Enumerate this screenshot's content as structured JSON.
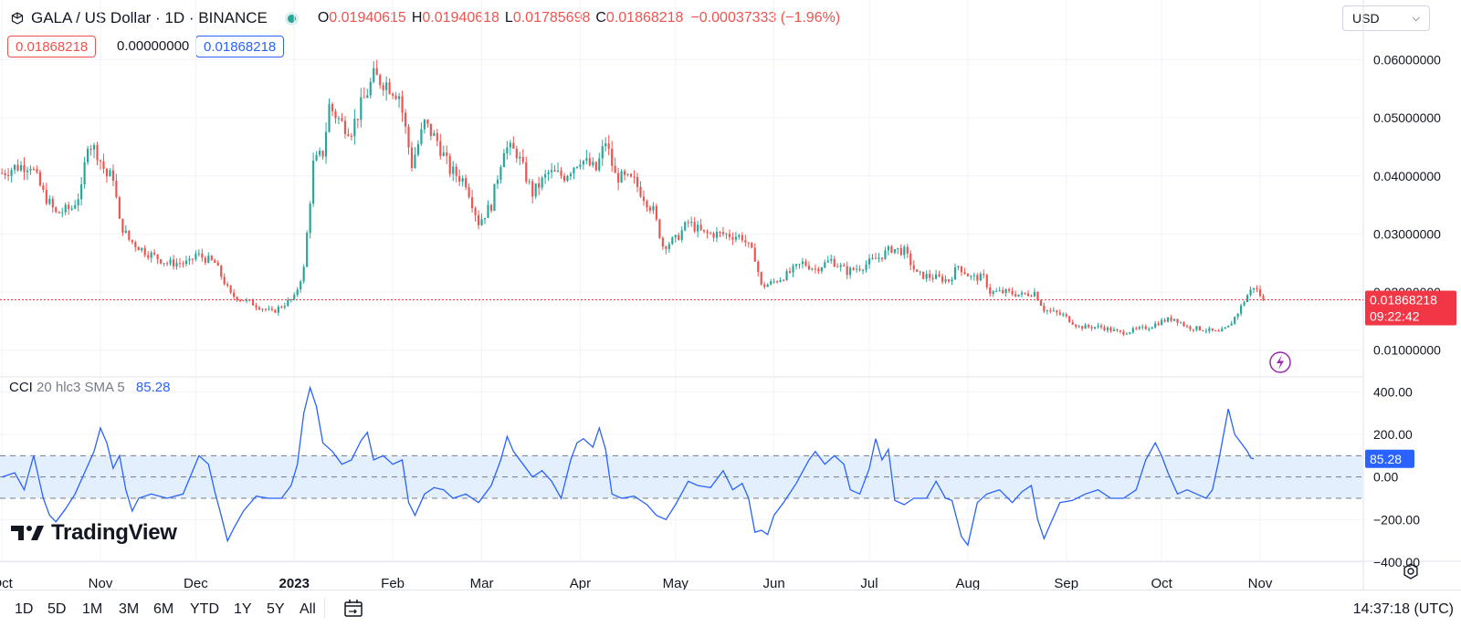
{
  "legend": {
    "symbol": "GALA / US Dollar · 1D · BINANCE",
    "o_label": "O",
    "o_value": "0.01940615",
    "h_label": "H",
    "h_value": "0.01940618",
    "l_label": "L",
    "l_value": "0.01785698",
    "c_label": "C",
    "c_value": "0.01868218",
    "change": "−0.00037333 (−1.96%)",
    "bid": "0.01868218",
    "spread": "0.00000000",
    "ask": "0.01868218"
  },
  "currency": {
    "label": "USD"
  },
  "price_scale": {
    "ticks": [
      {
        "value": 0.06,
        "label": "0.06000000"
      },
      {
        "value": 0.05,
        "label": "0.05000000"
      },
      {
        "value": 0.04,
        "label": "0.04000000"
      },
      {
        "value": 0.03,
        "label": "0.03000000"
      },
      {
        "value": 0.02,
        "label": "0.02000000"
      },
      {
        "value": 0.01,
        "label": "0.01000000"
      }
    ],
    "last_price_label": "0.01868218",
    "countdown_label": "09:22:42"
  },
  "cci_scale": {
    "ticks": [
      {
        "value": 400,
        "label": "400.00"
      },
      {
        "value": 200,
        "label": "200.00"
      },
      {
        "value": 0,
        "label": "0.00"
      },
      {
        "value": -200,
        "label": "−200.00"
      },
      {
        "value": -400,
        "label": "−400.00"
      }
    ],
    "value_label": "85.28"
  },
  "cci_legend": {
    "name": "CCI",
    "params": "20 hlc3 SMA 5",
    "value": "85.28"
  },
  "time_axis": {
    "labels": [
      {
        "t": -9,
        "label": "Oct",
        "bold": false
      },
      {
        "t": 22,
        "label": "Nov",
        "bold": false
      },
      {
        "t": 52,
        "label": "Dec",
        "bold": false
      },
      {
        "t": 83,
        "label": "2023",
        "bold": true
      },
      {
        "t": 114,
        "label": "Feb",
        "bold": false
      },
      {
        "t": 142,
        "label": "Mar",
        "bold": false
      },
      {
        "t": 173,
        "label": "Apr",
        "bold": false
      },
      {
        "t": 203,
        "label": "May",
        "bold": false
      },
      {
        "t": 234,
        "label": "Jun",
        "bold": false
      },
      {
        "t": 264,
        "label": "Jul",
        "bold": false
      },
      {
        "t": 295,
        "label": "Aug",
        "bold": false
      },
      {
        "t": 326,
        "label": "Sep",
        "bold": false
      },
      {
        "t": 356,
        "label": "Oct",
        "bold": false
      },
      {
        "t": 387,
        "label": "Nov",
        "bold": false
      }
    ]
  },
  "logo": {
    "text": "TradingView"
  },
  "bottom_bar": {
    "ranges": [
      "1D",
      "5D",
      "1M",
      "3M",
      "6M",
      "YTD",
      "1Y",
      "5Y",
      "All"
    ],
    "clock": "14:37:18 (UTC)"
  },
  "colors": {
    "up": "#26a69a",
    "down": "#ef5350",
    "cci_line": "#2962ff",
    "cci_band": "#e3effd",
    "grid": "#f0f3fa",
    "last_price": "#f23645"
  },
  "icons": [
    "symbol-icon",
    "market-open-dot",
    "chevron-down-icon",
    "lightning-icon",
    "tradingview-logo-icon",
    "compare-calendar-icon",
    "settings-icon"
  ],
  "chart_data": {
    "type": "candlestick",
    "symbol": "GALA / US Dollar",
    "interval": "1D",
    "exchange": "BINANCE",
    "x_unit": "days since 2022-10-01",
    "anchor_points": [
      {
        "t": -9,
        "price": 0.0405
      },
      {
        "t": -5,
        "price": 0.0415
      },
      {
        "t": 0,
        "price": 0.042
      },
      {
        "t": 4,
        "price": 0.037
      },
      {
        "t": 8,
        "price": 0.0335
      },
      {
        "t": 13,
        "price": 0.0345
      },
      {
        "t": 16,
        "price": 0.0375
      },
      {
        "t": 18,
        "price": 0.046
      },
      {
        "t": 21,
        "price": 0.044
      },
      {
        "t": 24,
        "price": 0.04
      },
      {
        "t": 26,
        "price": 0.04
      },
      {
        "t": 28,
        "price": 0.032
      },
      {
        "t": 31,
        "price": 0.029
      },
      {
        "t": 36,
        "price": 0.027
      },
      {
        "t": 43,
        "price": 0.025
      },
      {
        "t": 50,
        "price": 0.025
      },
      {
        "t": 52,
        "price": 0.0265
      },
      {
        "t": 58,
        "price": 0.025
      },
      {
        "t": 63,
        "price": 0.0195
      },
      {
        "t": 70,
        "price": 0.018
      },
      {
        "t": 76,
        "price": 0.0165
      },
      {
        "t": 80,
        "price": 0.018
      },
      {
        "t": 83,
        "price": 0.019
      },
      {
        "t": 86,
        "price": 0.024
      },
      {
        "t": 89,
        "price": 0.042
      },
      {
        "t": 92,
        "price": 0.044
      },
      {
        "t": 94,
        "price": 0.052
      },
      {
        "t": 98,
        "price": 0.049
      },
      {
        "t": 101,
        "price": 0.048
      },
      {
        "t": 104,
        "price": 0.052
      },
      {
        "t": 108,
        "price": 0.057
      },
      {
        "t": 112,
        "price": 0.056
      },
      {
        "t": 116,
        "price": 0.054
      },
      {
        "t": 120,
        "price": 0.042
      },
      {
        "t": 124,
        "price": 0.049
      },
      {
        "t": 128,
        "price": 0.046
      },
      {
        "t": 132,
        "price": 0.041
      },
      {
        "t": 137,
        "price": 0.039
      },
      {
        "t": 141,
        "price": 0.032
      },
      {
        "t": 145,
        "price": 0.035
      },
      {
        "t": 149,
        "price": 0.045
      },
      {
        "t": 153,
        "price": 0.044
      },
      {
        "t": 158,
        "price": 0.037
      },
      {
        "t": 163,
        "price": 0.0405
      },
      {
        "t": 168,
        "price": 0.04
      },
      {
        "t": 173,
        "price": 0.043
      },
      {
        "t": 178,
        "price": 0.041
      },
      {
        "t": 181,
        "price": 0.046
      },
      {
        "t": 184,
        "price": 0.04
      },
      {
        "t": 190,
        "price": 0.039
      },
      {
        "t": 196,
        "price": 0.034
      },
      {
        "t": 199,
        "price": 0.028
      },
      {
        "t": 203,
        "price": 0.029
      },
      {
        "t": 207,
        "price": 0.032
      },
      {
        "t": 212,
        "price": 0.03
      },
      {
        "t": 218,
        "price": 0.03
      },
      {
        "t": 224,
        "price": 0.0295
      },
      {
        "t": 228,
        "price": 0.026
      },
      {
        "t": 230,
        "price": 0.021
      },
      {
        "t": 233,
        "price": 0.0215
      },
      {
        "t": 238,
        "price": 0.023
      },
      {
        "t": 243,
        "price": 0.025
      },
      {
        "t": 247,
        "price": 0.024
      },
      {
        "t": 252,
        "price": 0.0255
      },
      {
        "t": 257,
        "price": 0.0235
      },
      {
        "t": 262,
        "price": 0.0245
      },
      {
        "t": 267,
        "price": 0.026
      },
      {
        "t": 271,
        "price": 0.0275
      },
      {
        "t": 275,
        "price": 0.027
      },
      {
        "t": 279,
        "price": 0.023
      },
      {
        "t": 285,
        "price": 0.0225
      },
      {
        "t": 289,
        "price": 0.022
      },
      {
        "t": 292,
        "price": 0.0245
      },
      {
        "t": 296,
        "price": 0.0225
      },
      {
        "t": 300,
        "price": 0.0225
      },
      {
        "t": 302,
        "price": 0.02
      },
      {
        "t": 307,
        "price": 0.02
      },
      {
        "t": 312,
        "price": 0.0195
      },
      {
        "t": 316,
        "price": 0.02
      },
      {
        "t": 319,
        "price": 0.017
      },
      {
        "t": 325,
        "price": 0.016
      },
      {
        "t": 330,
        "price": 0.014
      },
      {
        "t": 337,
        "price": 0.014
      },
      {
        "t": 343,
        "price": 0.013
      },
      {
        "t": 348,
        "price": 0.0135
      },
      {
        "t": 352,
        "price": 0.014
      },
      {
        "t": 356,
        "price": 0.015
      },
      {
        "t": 360,
        "price": 0.0155
      },
      {
        "t": 364,
        "price": 0.014
      },
      {
        "t": 370,
        "price": 0.0135
      },
      {
        "t": 374,
        "price": 0.013
      },
      {
        "t": 377,
        "price": 0.014
      },
      {
        "t": 380,
        "price": 0.0165
      },
      {
        "t": 383,
        "price": 0.0195
      },
      {
        "t": 385,
        "price": 0.021
      },
      {
        "t": 387,
        "price": 0.0195
      },
      {
        "t": 388,
        "price": 0.0187
      }
    ],
    "cci": [
      {
        "t": -9,
        "v": 0
      },
      {
        "t": -5,
        "v": 20
      },
      {
        "t": -2,
        "v": -60
      },
      {
        "t": 1,
        "v": 100
      },
      {
        "t": 4,
        "v": -100
      },
      {
        "t": 6,
        "v": -180
      },
      {
        "t": 8,
        "v": -210
      },
      {
        "t": 11,
        "v": -150
      },
      {
        "t": 14,
        "v": -80
      },
      {
        "t": 17,
        "v": 20
      },
      {
        "t": 20,
        "v": 120
      },
      {
        "t": 22,
        "v": 230
      },
      {
        "t": 24,
        "v": 160
      },
      {
        "t": 26,
        "v": 40
      },
      {
        "t": 28,
        "v": 100
      },
      {
        "t": 30,
        "v": -60
      },
      {
        "t": 32,
        "v": -160
      },
      {
        "t": 34,
        "v": -100
      },
      {
        "t": 38,
        "v": -80
      },
      {
        "t": 43,
        "v": -100
      },
      {
        "t": 48,
        "v": -80
      },
      {
        "t": 53,
        "v": 100
      },
      {
        "t": 56,
        "v": 60
      },
      {
        "t": 58,
        "v": -70
      },
      {
        "t": 60,
        "v": -180
      },
      {
        "t": 62,
        "v": -300
      },
      {
        "t": 64,
        "v": -240
      },
      {
        "t": 67,
        "v": -160
      },
      {
        "t": 71,
        "v": -90
      },
      {
        "t": 75,
        "v": -100
      },
      {
        "t": 79,
        "v": -100
      },
      {
        "t": 82,
        "v": -40
      },
      {
        "t": 84,
        "v": 60
      },
      {
        "t": 86,
        "v": 300
      },
      {
        "t": 88,
        "v": 420
      },
      {
        "t": 90,
        "v": 330
      },
      {
        "t": 92,
        "v": 160
      },
      {
        "t": 95,
        "v": 120
      },
      {
        "t": 98,
        "v": 60
      },
      {
        "t": 101,
        "v": 80
      },
      {
        "t": 104,
        "v": 170
      },
      {
        "t": 106,
        "v": 210
      },
      {
        "t": 108,
        "v": 80
      },
      {
        "t": 111,
        "v": 100
      },
      {
        "t": 114,
        "v": 60
      },
      {
        "t": 117,
        "v": 80
      },
      {
        "t": 119,
        "v": -120
      },
      {
        "t": 121,
        "v": -180
      },
      {
        "t": 124,
        "v": -80
      },
      {
        "t": 127,
        "v": -50
      },
      {
        "t": 130,
        "v": -60
      },
      {
        "t": 133,
        "v": -100
      },
      {
        "t": 137,
        "v": -80
      },
      {
        "t": 141,
        "v": -120
      },
      {
        "t": 145,
        "v": -40
      },
      {
        "t": 148,
        "v": 80
      },
      {
        "t": 150,
        "v": 190
      },
      {
        "t": 152,
        "v": 120
      },
      {
        "t": 155,
        "v": 60
      },
      {
        "t": 158,
        "v": 0
      },
      {
        "t": 161,
        "v": 30
      },
      {
        "t": 164,
        "v": -20
      },
      {
        "t": 167,
        "v": -100
      },
      {
        "t": 170,
        "v": 80
      },
      {
        "t": 172,
        "v": 160
      },
      {
        "t": 174,
        "v": 180
      },
      {
        "t": 177,
        "v": 140
      },
      {
        "t": 179,
        "v": 230
      },
      {
        "t": 181,
        "v": 130
      },
      {
        "t": 183,
        "v": -80
      },
      {
        "t": 186,
        "v": -100
      },
      {
        "t": 190,
        "v": -90
      },
      {
        "t": 194,
        "v": -130
      },
      {
        "t": 197,
        "v": -180
      },
      {
        "t": 200,
        "v": -200
      },
      {
        "t": 203,
        "v": -130
      },
      {
        "t": 207,
        "v": -20
      },
      {
        "t": 210,
        "v": -40
      },
      {
        "t": 214,
        "v": -50
      },
      {
        "t": 218,
        "v": 30
      },
      {
        "t": 221,
        "v": -60
      },
      {
        "t": 224,
        "v": -30
      },
      {
        "t": 226,
        "v": -100
      },
      {
        "t": 228,
        "v": -260
      },
      {
        "t": 230,
        "v": -250
      },
      {
        "t": 232,
        "v": -270
      },
      {
        "t": 234,
        "v": -180
      },
      {
        "t": 237,
        "v": -120
      },
      {
        "t": 241,
        "v": -30
      },
      {
        "t": 245,
        "v": 80
      },
      {
        "t": 247,
        "v": 120
      },
      {
        "t": 250,
        "v": 60
      },
      {
        "t": 253,
        "v": 100
      },
      {
        "t": 256,
        "v": 60
      },
      {
        "t": 258,
        "v": -60
      },
      {
        "t": 261,
        "v": -80
      },
      {
        "t": 264,
        "v": 40
      },
      {
        "t": 266,
        "v": 180
      },
      {
        "t": 268,
        "v": 80
      },
      {
        "t": 270,
        "v": 130
      },
      {
        "t": 272,
        "v": -110
      },
      {
        "t": 275,
        "v": -130
      },
      {
        "t": 278,
        "v": -100
      },
      {
        "t": 282,
        "v": -100
      },
      {
        "t": 285,
        "v": -20
      },
      {
        "t": 288,
        "v": -100
      },
      {
        "t": 290,
        "v": -110
      },
      {
        "t": 293,
        "v": -280
      },
      {
        "t": 295,
        "v": -320
      },
      {
        "t": 298,
        "v": -120
      },
      {
        "t": 301,
        "v": -80
      },
      {
        "t": 305,
        "v": -60
      },
      {
        "t": 309,
        "v": -120
      },
      {
        "t": 312,
        "v": -70
      },
      {
        "t": 315,
        "v": -40
      },
      {
        "t": 317,
        "v": -200
      },
      {
        "t": 319,
        "v": -290
      },
      {
        "t": 321,
        "v": -220
      },
      {
        "t": 324,
        "v": -120
      },
      {
        "t": 328,
        "v": -110
      },
      {
        "t": 332,
        "v": -80
      },
      {
        "t": 336,
        "v": -60
      },
      {
        "t": 340,
        "v": -100
      },
      {
        "t": 344,
        "v": -100
      },
      {
        "t": 348,
        "v": -60
      },
      {
        "t": 351,
        "v": 80
      },
      {
        "t": 354,
        "v": 160
      },
      {
        "t": 356,
        "v": 100
      },
      {
        "t": 358,
        "v": 20
      },
      {
        "t": 361,
        "v": -80
      },
      {
        "t": 364,
        "v": -60
      },
      {
        "t": 367,
        "v": -80
      },
      {
        "t": 370,
        "v": -100
      },
      {
        "t": 372,
        "v": -60
      },
      {
        "t": 374,
        "v": 80
      },
      {
        "t": 377,
        "v": 320
      },
      {
        "t": 379,
        "v": 200
      },
      {
        "t": 381,
        "v": 160
      },
      {
        "t": 383,
        "v": 120
      },
      {
        "t": 384,
        "v": 90
      },
      {
        "t": 385,
        "v": 85.28
      }
    ],
    "cci_band": [
      -100,
      100
    ],
    "price_range": [
      0.0065,
      0.064
    ],
    "cci_range": [
      -400,
      440
    ],
    "last_price": 0.01868218
  }
}
